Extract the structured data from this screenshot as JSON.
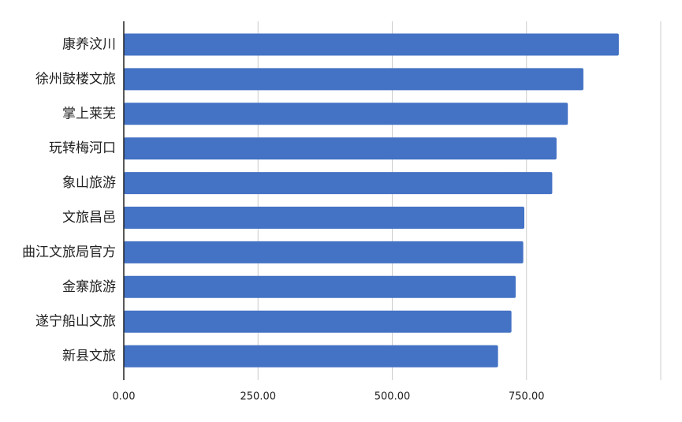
{
  "chart_data": {
    "type": "bar",
    "orientation": "horizontal",
    "categories": [
      "康养汶川",
      "徐州鼓楼文旅",
      "掌上莱芜",
      "玩转梅河口",
      "象山旅游",
      "文旅昌邑",
      "曲江文旅局官方",
      "金寨旅游",
      "遂宁船山文旅",
      "新县文旅"
    ],
    "values": [
      922,
      856,
      827,
      806,
      798,
      746,
      744,
      730,
      722,
      697
    ],
    "xlim": [
      0,
      1000
    ],
    "ticks": [
      "0.00",
      "250.00",
      "500.00",
      "750.00"
    ],
    "tick_values": [
      0,
      250,
      500,
      750
    ],
    "grid": true,
    "bar_color": "#4472C4",
    "grid_color": "#cccccc",
    "axis_color": "#222222"
  }
}
